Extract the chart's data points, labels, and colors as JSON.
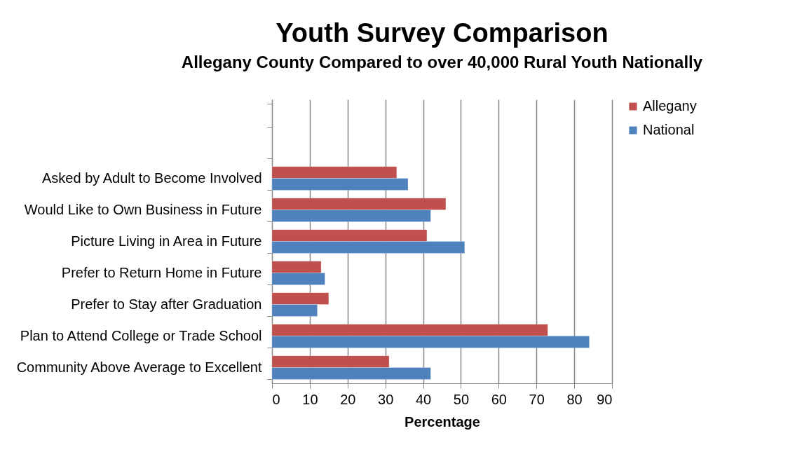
{
  "chart_data": {
    "type": "bar",
    "orientation": "horizontal",
    "title": "Youth Survey Comparison",
    "subtitle": "Allegany County Compared to over 40,000 Rural Youth Nationally",
    "xlabel": "Percentage",
    "categories": [
      null,
      null,
      "Asked by Adult to Become Involved",
      "Would Like to Own Business in Future",
      "Picture Living in Area in Future",
      "Prefer to Return Home in Future",
      "Prefer to Stay after Graduation",
      "Plan to Attend College or Trade School",
      "Community Above Average to Excellent"
    ],
    "series": [
      {
        "name": "Allegany",
        "color": "#c0504d",
        "values": [
          null,
          null,
          33,
          46,
          41,
          13,
          15,
          73,
          31
        ]
      },
      {
        "name": "National",
        "color": "#4f81bd",
        "values": [
          null,
          null,
          36,
          42,
          51,
          14,
          12,
          84,
          42
        ]
      }
    ],
    "xlim": [
      0,
      90
    ],
    "xticks": [
      0,
      10,
      20,
      30,
      40,
      50,
      60,
      70,
      80,
      90
    ],
    "grid": "x",
    "legend": "right"
  }
}
